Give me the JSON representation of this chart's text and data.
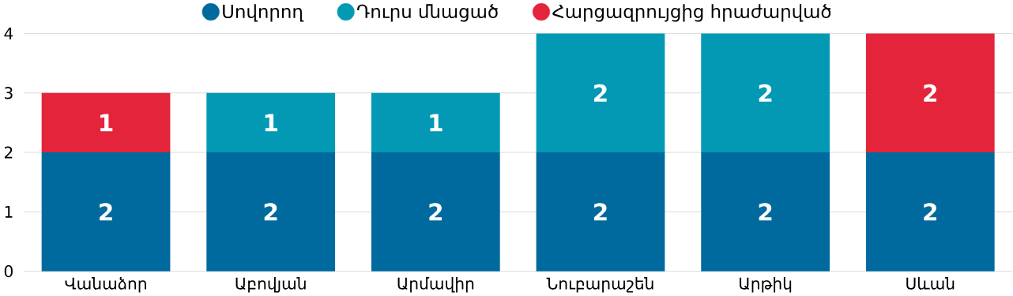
{
  "chart_data": {
    "type": "bar",
    "stacked": true,
    "categories": [
      "Վանաձոր",
      "Աբովյան",
      "Արմավիր",
      "Նուբարաշեն",
      "Արթիկ",
      "Սևան"
    ],
    "series": [
      {
        "name": "Սովորող",
        "color": "#006a9e",
        "values": [
          2,
          2,
          2,
          2,
          2,
          2
        ]
      },
      {
        "name": "Դուրս մնացած",
        "color": "#0399b4",
        "values": [
          null,
          1,
          1,
          2,
          2,
          null
        ]
      },
      {
        "name": "Հարցազրույցից հրաժարված",
        "color": "#e3243b",
        "values": [
          1,
          null,
          null,
          null,
          null,
          2
        ]
      }
    ],
    "ylim": [
      0,
      4
    ],
    "yticks": [
      0,
      1,
      2,
      3,
      4
    ],
    "grid": "y",
    "legend": "top",
    "data_labels": true
  }
}
